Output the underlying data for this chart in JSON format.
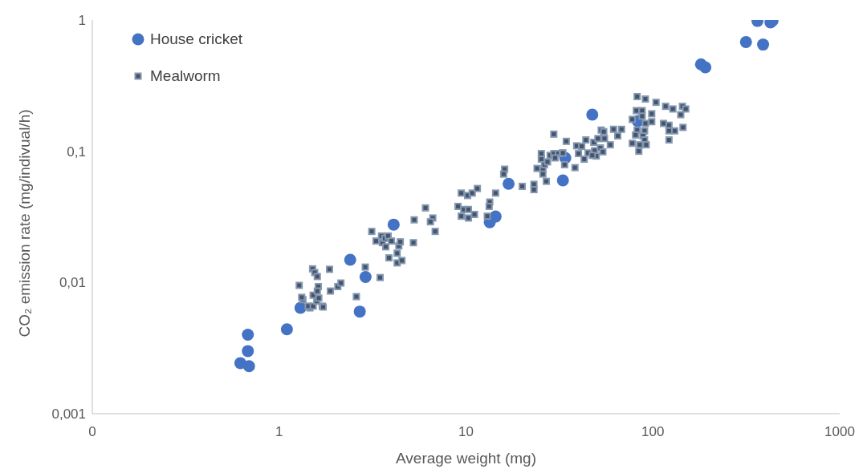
{
  "chart_data": {
    "type": "scatter",
    "xlabel": "Average weight (mg)",
    "ylabel": "CO₂ emission rate (mg/indivual/h)",
    "log": "xy",
    "grid": false,
    "legend": "top left",
    "xlim": [
      0.1,
      1000
    ],
    "xticks": [
      {
        "value": 0.1,
        "label": "0"
      },
      1,
      10,
      100,
      1000
    ],
    "ylim": [
      0.001,
      1
    ],
    "yticks": [
      {
        "value": 0.001,
        "label": "0,001"
      },
      {
        "value": 0.01,
        "label": "0,01"
      },
      {
        "value": 0.1,
        "label": "0,1"
      },
      1
    ],
    "series": [
      {
        "name": "House cricket",
        "color": "#4472c4",
        "marker": "circle",
        "x": [
          0.62,
          0.68,
          0.68,
          0.69,
          1.1,
          1.3,
          2.4,
          2.9,
          2.7,
          4.1,
          13.4,
          14.4,
          16.9,
          33,
          34,
          47.4,
          83,
          181,
          191,
          315,
          363,
          389,
          426,
          437
        ],
        "values": [
          0.00243,
          0.004,
          0.003,
          0.0023,
          0.0044,
          0.0064,
          0.0149,
          0.011,
          0.006,
          0.0276,
          0.0288,
          0.0318,
          0.0565,
          0.06,
          0.089,
          0.19,
          0.17,
          0.46,
          0.436,
          0.68,
          0.985,
          0.65,
          0.96,
          0.99
        ]
      },
      {
        "name": "Mealworm",
        "color": "#44546a",
        "marker": "square",
        "x": [
          1.28,
          1.51,
          1.55,
          1.6,
          1.62,
          1.52,
          1.46,
          1.34,
          1.43,
          1.52,
          1.7,
          1.59,
          1.63,
          1.6,
          1.72,
          1.88,
          2.06,
          2.14,
          1.86,
          1.32,
          2.59,
          2.89,
          3.13,
          3.3,
          3.53,
          3.57,
          3.68,
          3.72,
          3.83,
          3.99,
          3.87,
          4.37,
          4.45,
          4.28,
          4.28,
          4.54,
          3.47,
          5.23,
          5.28,
          6.07,
          6.64,
          6.45,
          6.84,
          9.43,
          10.2,
          10.8,
          11.5,
          9.06,
          9.74,
          10.3,
          9.43,
          10.3,
          11.1,
          14.4,
          13.4,
          13.3,
          13,
          16.1,
          15.9,
          20,
          23.1,
          23.1,
          26.9,
          29.5,
          34.4,
          25.3,
          25.3,
          24,
          25.8,
          25.8,
          26.3,
          27.3,
          28.2,
          29.5,
          31.2,
          32.8,
          30,
          33.7,
          38.3,
          39.1,
          41.6,
          40,
          33,
          43.8,
          45,
          42.9,
          48.8,
          49.8,
          47.4,
          52.4,
          54,
          59.2,
          48.3,
          50.8,
          55.1,
          52.9,
          54.6,
          61.6,
          64.9,
          68,
          82.4,
          91.2,
          104,
          117,
          128,
          144,
          150,
          141,
          98.6,
          81.6,
          87.6,
          87.6,
          77.6,
          91.2,
          98.6,
          114,
          122,
          122,
          131,
          145,
          122,
          82.4,
          90.3,
          80.8,
          88.5,
          90.3,
          77.6,
          85,
          92.1,
          84.1
        ],
        "values": [
          0.0095,
          0.0127,
          0.0119,
          0.0111,
          0.0093,
          0.008,
          0.0064,
          0.0074,
          0.0066,
          0.0066,
          0.0066,
          0.0072,
          0.0076,
          0.0086,
          0.0065,
          0.0086,
          0.0093,
          0.0099,
          0.0126,
          0.0077,
          0.0078,
          0.0131,
          0.0245,
          0.0207,
          0.0226,
          0.0201,
          0.0217,
          0.0187,
          0.0226,
          0.0207,
          0.0154,
          0.019,
          0.0204,
          0.0167,
          0.0141,
          0.0147,
          0.0109,
          0.0201,
          0.03,
          0.037,
          0.031,
          0.029,
          0.0245,
          0.048,
          0.046,
          0.048,
          0.052,
          0.038,
          0.036,
          0.036,
          0.032,
          0.031,
          0.033,
          0.048,
          0.041,
          0.038,
          0.032,
          0.073,
          0.067,
          0.054,
          0.056,
          0.051,
          0.059,
          0.135,
          0.119,
          0.096,
          0.087,
          0.074,
          0.073,
          0.067,
          0.079,
          0.083,
          0.093,
          0.096,
          0.096,
          0.097,
          0.089,
          0.079,
          0.075,
          0.11,
          0.109,
          0.096,
          0.097,
          0.122,
          0.097,
          0.087,
          0.101,
          0.092,
          0.093,
          0.106,
          0.099,
          0.112,
          0.117,
          0.125,
          0.125,
          0.145,
          0.141,
          0.147,
          0.131,
          0.147,
          0.261,
          0.25,
          0.236,
          0.22,
          0.21,
          0.22,
          0.21,
          0.19,
          0.193,
          0.204,
          0.204,
          0.185,
          0.175,
          0.163,
          0.168,
          0.163,
          0.158,
          0.143,
          0.143,
          0.152,
          0.122,
          0.145,
          0.143,
          0.133,
          0.131,
          0.122,
          0.115,
          0.112,
          0.112,
          0.1
        ]
      }
    ]
  }
}
